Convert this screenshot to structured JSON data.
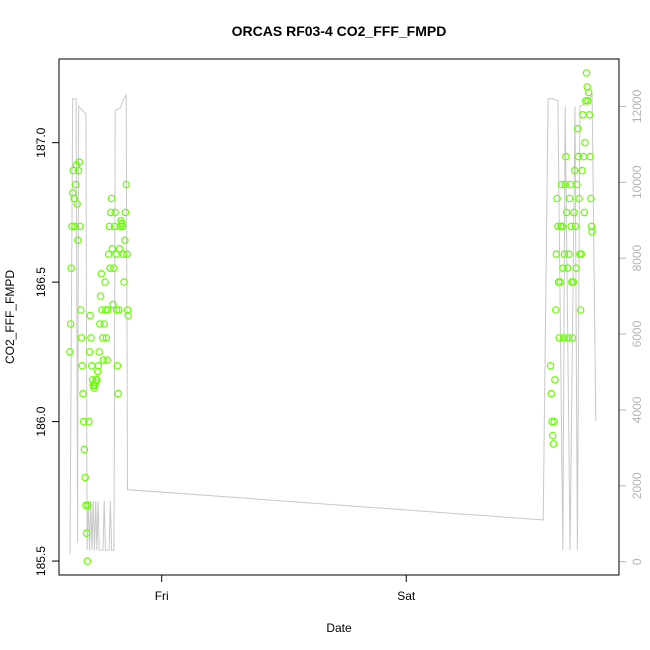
{
  "chart_data": {
    "type": "scatter",
    "title": "ORCAS RF03-4 CO2_FFF_FMPD",
    "xlabel": "Date",
    "ylabel": "CO2_FFF_FMPD",
    "x_ticks": [
      {
        "label": "Fri",
        "value": 1.0
      },
      {
        "label": "Sat",
        "value": 2.0
      }
    ],
    "y_ticks": [
      "185.5",
      "186.0",
      "186.5",
      "187.0"
    ],
    "y_tick_values": [
      185.5,
      186.0,
      186.5,
      187.0
    ],
    "y2_ticks": [
      "0",
      "2000",
      "4000",
      "6000",
      "8000",
      "10000",
      "12000"
    ],
    "y2_tick_values": [
      0,
      2000,
      4000,
      6000,
      8000,
      10000,
      12000
    ],
    "xlim": [
      0.58,
      2.87
    ],
    "ylim": [
      185.45,
      187.3
    ],
    "y2lim": [
      -350,
      13250
    ],
    "grid": false,
    "colors": {
      "points": "#66ff00",
      "altitude_line": "#c8c8c8",
      "axis": "#000000",
      "secondary_axis": "#b4b4b4"
    },
    "series": [
      {
        "axis": "left",
        "style": "points",
        "points": [
          [
            0.625,
            186.25
          ],
          [
            0.628,
            186.35
          ],
          [
            0.63,
            186.55
          ],
          [
            0.633,
            186.7
          ],
          [
            0.636,
            186.82
          ],
          [
            0.639,
            186.9
          ],
          [
            0.642,
            186.8
          ],
          [
            0.645,
            186.7
          ],
          [
            0.648,
            186.85
          ],
          [
            0.651,
            186.92
          ],
          [
            0.654,
            186.78
          ],
          [
            0.657,
            186.65
          ],
          [
            0.66,
            186.9
          ],
          [
            0.663,
            186.93
          ],
          [
            0.666,
            186.7
          ],
          [
            0.669,
            186.4
          ],
          [
            0.672,
            186.3
          ],
          [
            0.675,
            186.2
          ],
          [
            0.678,
            186.1
          ],
          [
            0.681,
            186.0
          ],
          [
            0.684,
            185.9
          ],
          [
            0.687,
            185.8
          ],
          [
            0.69,
            185.7
          ],
          [
            0.693,
            185.6
          ],
          [
            0.696,
            185.5
          ],
          [
            0.699,
            185.7
          ],
          [
            0.702,
            186.0
          ],
          [
            0.705,
            186.25
          ],
          [
            0.708,
            186.38
          ],
          [
            0.711,
            186.3
          ],
          [
            0.714,
            186.2
          ],
          [
            0.717,
            186.15
          ],
          [
            0.72,
            186.13
          ],
          [
            0.723,
            186.12
          ],
          [
            0.726,
            186.13
          ],
          [
            0.729,
            186.14
          ],
          [
            0.732,
            186.15
          ],
          [
            0.735,
            186.15
          ],
          [
            0.738,
            186.18
          ],
          [
            0.741,
            186.2
          ],
          [
            0.744,
            186.25
          ],
          [
            0.747,
            186.35
          ],
          [
            0.75,
            186.45
          ],
          [
            0.753,
            186.53
          ],
          [
            0.756,
            186.4
          ],
          [
            0.759,
            186.3
          ],
          [
            0.762,
            186.22
          ],
          [
            0.765,
            186.35
          ],
          [
            0.768,
            186.5
          ],
          [
            0.771,
            186.4
          ],
          [
            0.774,
            186.3
          ],
          [
            0.777,
            186.22
          ],
          [
            0.78,
            186.4
          ],
          [
            0.783,
            186.6
          ],
          [
            0.786,
            186.7
          ],
          [
            0.789,
            186.55
          ],
          [
            0.792,
            186.75
          ],
          [
            0.795,
            186.8
          ],
          [
            0.798,
            186.62
          ],
          [
            0.801,
            186.42
          ],
          [
            0.804,
            186.55
          ],
          [
            0.807,
            186.7
          ],
          [
            0.81,
            186.75
          ],
          [
            0.813,
            186.6
          ],
          [
            0.816,
            186.4
          ],
          [
            0.819,
            186.2
          ],
          [
            0.822,
            186.1
          ],
          [
            0.825,
            186.4
          ],
          [
            0.828,
            186.62
          ],
          [
            0.831,
            186.7
          ],
          [
            0.834,
            186.72
          ],
          [
            0.837,
            186.71
          ],
          [
            0.84,
            186.7
          ],
          [
            0.843,
            186.6
          ],
          [
            0.846,
            186.5
          ],
          [
            0.849,
            186.65
          ],
          [
            0.852,
            186.75
          ],
          [
            0.855,
            186.85
          ],
          [
            0.858,
            186.6
          ],
          [
            0.861,
            186.4
          ],
          [
            0.863,
            186.38
          ],
          [
            2.59,
            186.2
          ],
          [
            2.593,
            186.1
          ],
          [
            2.596,
            186.0
          ],
          [
            2.599,
            185.95
          ],
          [
            2.602,
            185.92
          ],
          [
            2.605,
            186.0
          ],
          [
            2.608,
            186.15
          ],
          [
            2.611,
            186.4
          ],
          [
            2.614,
            186.6
          ],
          [
            2.617,
            186.8
          ],
          [
            2.62,
            186.7
          ],
          [
            2.623,
            186.5
          ],
          [
            2.626,
            186.3
          ],
          [
            2.629,
            186.5
          ],
          [
            2.632,
            186.7
          ],
          [
            2.635,
            186.85
          ],
          [
            2.638,
            186.7
          ],
          [
            2.641,
            186.55
          ],
          [
            2.644,
            186.3
          ],
          [
            2.647,
            186.6
          ],
          [
            2.65,
            186.85
          ],
          [
            2.653,
            186.95
          ],
          [
            2.656,
            186.75
          ],
          [
            2.659,
            186.55
          ],
          [
            2.662,
            186.3
          ],
          [
            2.665,
            186.6
          ],
          [
            2.668,
            186.8
          ],
          [
            2.671,
            186.85
          ],
          [
            2.674,
            186.7
          ],
          [
            2.677,
            186.5
          ],
          [
            2.68,
            186.3
          ],
          [
            2.683,
            186.5
          ],
          [
            2.686,
            186.75
          ],
          [
            2.689,
            186.9
          ],
          [
            2.692,
            186.7
          ],
          [
            2.695,
            186.55
          ],
          [
            2.698,
            186.85
          ],
          [
            2.701,
            187.05
          ],
          [
            2.704,
            186.95
          ],
          [
            2.707,
            186.8
          ],
          [
            2.71,
            186.6
          ],
          [
            2.713,
            186.4
          ],
          [
            2.716,
            186.6
          ],
          [
            2.719,
            186.9
          ],
          [
            2.722,
            187.1
          ],
          [
            2.725,
            186.95
          ],
          [
            2.728,
            186.75
          ],
          [
            2.731,
            187.0
          ],
          [
            2.734,
            187.15
          ],
          [
            2.737,
            187.25
          ],
          [
            2.74,
            187.2
          ],
          [
            2.743,
            187.15
          ],
          [
            2.746,
            187.18
          ],
          [
            2.749,
            187.1
          ],
          [
            2.752,
            186.95
          ],
          [
            2.755,
            186.8
          ],
          [
            2.758,
            186.7
          ],
          [
            2.76,
            186.68
          ]
        ]
      },
      {
        "axis": "right",
        "style": "line",
        "points": [
          [
            0.625,
            200
          ],
          [
            0.636,
            12200
          ],
          [
            0.65,
            12200
          ],
          [
            0.656,
            500
          ],
          [
            0.66,
            12000
          ],
          [
            0.675,
            11900
          ],
          [
            0.69,
            11800
          ],
          [
            0.695,
            300
          ],
          [
            0.7,
            1600
          ],
          [
            0.705,
            300
          ],
          [
            0.71,
            1600
          ],
          [
            0.715,
            300
          ],
          [
            0.72,
            1600
          ],
          [
            0.725,
            300
          ],
          [
            0.73,
            1600
          ],
          [
            0.735,
            300
          ],
          [
            0.74,
            1600
          ],
          [
            0.745,
            300
          ],
          [
            0.76,
            300
          ],
          [
            0.765,
            1600
          ],
          [
            0.77,
            300
          ],
          [
            0.785,
            300
          ],
          [
            0.79,
            1600
          ],
          [
            0.795,
            300
          ],
          [
            0.805,
            300
          ],
          [
            0.81,
            11900
          ],
          [
            0.83,
            11950
          ],
          [
            0.845,
            12200
          ],
          [
            0.855,
            12300
          ],
          [
            0.86,
            1900
          ],
          [
            2.56,
            1100
          ],
          [
            2.58,
            12200
          ],
          [
            2.6,
            12200
          ],
          [
            2.62,
            12150
          ],
          [
            2.64,
            300
          ],
          [
            2.65,
            12000
          ],
          [
            2.67,
            300
          ],
          [
            2.69,
            12000
          ],
          [
            2.7,
            300
          ],
          [
            2.71,
            12000
          ],
          [
            2.74,
            12100
          ],
          [
            2.76,
            12300
          ],
          [
            2.775,
            3700
          ]
        ]
      }
    ]
  }
}
